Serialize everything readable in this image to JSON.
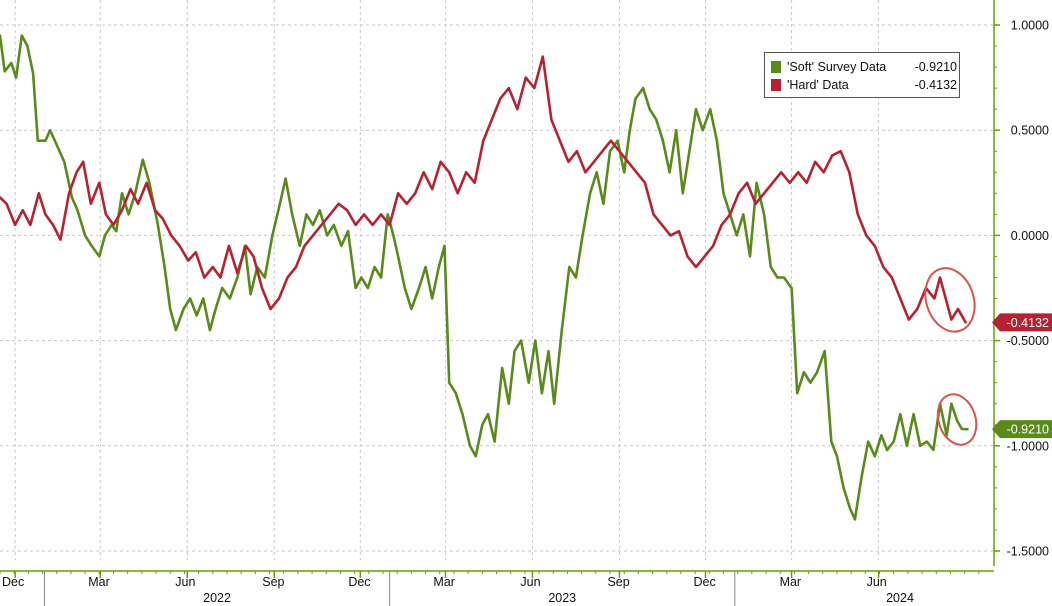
{
  "chart_data": {
    "type": "line",
    "title": "",
    "x_axis": {
      "months": [
        "Dec",
        "Mar",
        "Jun",
        "Sep",
        "Dec",
        "Mar",
        "Jun",
        "Sep",
        "Dec",
        "Mar",
        "Jun"
      ],
      "years": [
        "2022",
        "2023",
        "2024"
      ],
      "range": [
        "2021-11-15",
        "2024-09-30"
      ]
    },
    "y_axis": {
      "position": "right",
      "ylim": [
        -1.5,
        1.0
      ],
      "ticks": [
        1.0,
        0.5,
        0.0,
        -0.5,
        -1.0,
        -1.5
      ],
      "tick_labels": [
        "1.0000",
        "0.5000",
        "0.0000",
        "-0.5000",
        "-1.0000",
        "-1.5000"
      ]
    },
    "grid": "dashed",
    "legend_position": "top-right",
    "series": [
      {
        "name": "'Soft' Survey Data",
        "color": "#5a8a1c",
        "last_value": -0.921,
        "last_label": "-0.9210",
        "values": [
          [
            "2021-11-15",
            0.95
          ],
          [
            "2021-11-20",
            0.78
          ],
          [
            "2021-11-27",
            0.82
          ],
          [
            "2021-12-02",
            0.75
          ],
          [
            "2021-12-08",
            0.95
          ],
          [
            "2021-12-14",
            0.9
          ],
          [
            "2021-12-20",
            0.77
          ],
          [
            "2021-12-25",
            0.45
          ],
          [
            "2022-01-02",
            0.45
          ],
          [
            "2022-01-07",
            0.5
          ],
          [
            "2022-01-14",
            0.43
          ],
          [
            "2022-01-22",
            0.35
          ],
          [
            "2022-01-30",
            0.18
          ],
          [
            "2022-02-05",
            0.12
          ],
          [
            "2022-02-13",
            0.0
          ],
          [
            "2022-02-20",
            -0.05
          ],
          [
            "2022-02-28",
            -0.1
          ],
          [
            "2022-03-06",
            0.0
          ],
          [
            "2022-03-13",
            0.05
          ],
          [
            "2022-03-18",
            0.02
          ],
          [
            "2022-03-24",
            0.2
          ],
          [
            "2022-03-31",
            0.1
          ],
          [
            "2022-04-07",
            0.2
          ],
          [
            "2022-04-15",
            0.36
          ],
          [
            "2022-04-22",
            0.25
          ],
          [
            "2022-05-01",
            0.05
          ],
          [
            "2022-05-08",
            -0.15
          ],
          [
            "2022-05-14",
            -0.35
          ],
          [
            "2022-05-20",
            -0.45
          ],
          [
            "2022-05-28",
            -0.35
          ],
          [
            "2022-06-04",
            -0.3
          ],
          [
            "2022-06-11",
            -0.38
          ],
          [
            "2022-06-18",
            -0.3
          ],
          [
            "2022-06-25",
            -0.45
          ],
          [
            "2022-07-01",
            -0.35
          ],
          [
            "2022-07-08",
            -0.25
          ],
          [
            "2022-07-16",
            -0.3
          ],
          [
            "2022-07-24",
            -0.2
          ],
          [
            "2022-08-01",
            -0.05
          ],
          [
            "2022-08-07",
            -0.28
          ],
          [
            "2022-08-14",
            -0.15
          ],
          [
            "2022-08-22",
            -0.2
          ],
          [
            "2022-08-30",
            0.0
          ],
          [
            "2022-09-07",
            0.15
          ],
          [
            "2022-09-13",
            0.27
          ],
          [
            "2022-09-20",
            0.1
          ],
          [
            "2022-09-28",
            -0.05
          ],
          [
            "2022-10-05",
            0.1
          ],
          [
            "2022-10-12",
            0.05
          ],
          [
            "2022-10-19",
            0.12
          ],
          [
            "2022-10-27",
            0.0
          ],
          [
            "2022-11-03",
            0.05
          ],
          [
            "2022-11-11",
            -0.05
          ],
          [
            "2022-11-18",
            0.02
          ],
          [
            "2022-11-26",
            -0.25
          ],
          [
            "2022-12-02",
            -0.2
          ],
          [
            "2022-12-09",
            -0.25
          ],
          [
            "2022-12-16",
            -0.15
          ],
          [
            "2022-12-23",
            -0.2
          ],
          [
            "2022-12-30",
            0.1
          ],
          [
            "2023-01-05",
            0.0
          ],
          [
            "2023-01-10",
            -0.1
          ],
          [
            "2023-01-17",
            -0.25
          ],
          [
            "2023-01-24",
            -0.35
          ],
          [
            "2023-02-01",
            -0.25
          ],
          [
            "2023-02-08",
            -0.15
          ],
          [
            "2023-02-15",
            -0.3
          ],
          [
            "2023-02-22",
            -0.15
          ],
          [
            "2023-02-28",
            -0.05
          ],
          [
            "2023-03-05",
            -0.7
          ],
          [
            "2023-03-12",
            -0.75
          ],
          [
            "2023-03-19",
            -0.85
          ],
          [
            "2023-03-27",
            -1.0
          ],
          [
            "2023-04-02",
            -1.05
          ],
          [
            "2023-04-09",
            -0.9
          ],
          [
            "2023-04-15",
            -0.85
          ],
          [
            "2023-04-22",
            -0.98
          ],
          [
            "2023-04-30",
            -0.63
          ],
          [
            "2023-05-07",
            -0.8
          ],
          [
            "2023-05-13",
            -0.55
          ],
          [
            "2023-05-20",
            -0.5
          ],
          [
            "2023-05-28",
            -0.7
          ],
          [
            "2023-06-04",
            -0.5
          ],
          [
            "2023-06-11",
            -0.75
          ],
          [
            "2023-06-18",
            -0.55
          ],
          [
            "2023-06-24",
            -0.8
          ],
          [
            "2023-07-02",
            -0.45
          ],
          [
            "2023-07-10",
            -0.15
          ],
          [
            "2023-07-17",
            -0.2
          ],
          [
            "2023-07-24",
            0.0
          ],
          [
            "2023-08-01",
            0.2
          ],
          [
            "2023-08-08",
            0.3
          ],
          [
            "2023-08-15",
            0.15
          ],
          [
            "2023-08-22",
            0.4
          ],
          [
            "2023-08-30",
            0.45
          ],
          [
            "2023-09-06",
            0.3
          ],
          [
            "2023-09-12",
            0.5
          ],
          [
            "2023-09-18",
            0.65
          ],
          [
            "2023-09-26",
            0.7
          ],
          [
            "2023-10-03",
            0.6
          ],
          [
            "2023-10-10",
            0.55
          ],
          [
            "2023-10-17",
            0.45
          ],
          [
            "2023-10-24",
            0.3
          ],
          [
            "2023-10-31",
            0.5
          ],
          [
            "2023-11-07",
            0.2
          ],
          [
            "2023-11-14",
            0.4
          ],
          [
            "2023-11-21",
            0.6
          ],
          [
            "2023-11-28",
            0.5
          ],
          [
            "2023-12-06",
            0.6
          ],
          [
            "2023-12-13",
            0.45
          ],
          [
            "2023-12-20",
            0.2
          ],
          [
            "2023-12-27",
            0.1
          ],
          [
            "2024-01-03",
            0.0
          ],
          [
            "2024-01-10",
            0.1
          ],
          [
            "2024-01-17",
            -0.1
          ],
          [
            "2024-01-24",
            0.25
          ],
          [
            "2024-02-01",
            0.1
          ],
          [
            "2024-02-08",
            -0.15
          ],
          [
            "2024-02-15",
            -0.2
          ],
          [
            "2024-02-22",
            -0.2
          ],
          [
            "2024-03-01",
            -0.25
          ],
          [
            "2024-03-07",
            -0.75
          ],
          [
            "2024-03-14",
            -0.65
          ],
          [
            "2024-03-21",
            -0.7
          ],
          [
            "2024-03-28",
            -0.65
          ],
          [
            "2024-04-05",
            -0.55
          ],
          [
            "2024-04-12",
            -0.98
          ],
          [
            "2024-04-18",
            -1.05
          ],
          [
            "2024-04-25",
            -1.2
          ],
          [
            "2024-05-02",
            -1.3
          ],
          [
            "2024-05-07",
            -1.35
          ],
          [
            "2024-05-14",
            -1.15
          ],
          [
            "2024-05-21",
            -0.98
          ],
          [
            "2024-05-28",
            -1.05
          ],
          [
            "2024-06-04",
            -0.95
          ],
          [
            "2024-06-10",
            -1.02
          ],
          [
            "2024-06-17",
            -0.98
          ],
          [
            "2024-06-24",
            -0.85
          ],
          [
            "2024-07-01",
            -1.0
          ],
          [
            "2024-07-08",
            -0.85
          ],
          [
            "2024-07-15",
            -1.0
          ],
          [
            "2024-07-22",
            -0.98
          ],
          [
            "2024-07-29",
            -1.02
          ],
          [
            "2024-08-05",
            -0.8
          ],
          [
            "2024-08-12",
            -0.95
          ],
          [
            "2024-08-17",
            -0.8
          ],
          [
            "2024-08-23",
            -0.88
          ],
          [
            "2024-08-28",
            -0.92
          ],
          [
            "2024-09-03",
            -0.921
          ]
        ]
      },
      {
        "name": "'Hard' Data",
        "color": "#b52332",
        "last_value": -0.4132,
        "last_label": "-0.4132",
        "values": [
          [
            "2021-11-15",
            0.18
          ],
          [
            "2021-11-22",
            0.15
          ],
          [
            "2021-12-01",
            0.05
          ],
          [
            "2021-12-09",
            0.12
          ],
          [
            "2021-12-17",
            0.05
          ],
          [
            "2021-12-26",
            0.2
          ],
          [
            "2022-01-02",
            0.1
          ],
          [
            "2022-01-10",
            0.05
          ],
          [
            "2022-01-18",
            -0.02
          ],
          [
            "2022-01-27",
            0.2
          ],
          [
            "2022-02-04",
            0.3
          ],
          [
            "2022-02-11",
            0.35
          ],
          [
            "2022-02-19",
            0.15
          ],
          [
            "2022-02-28",
            0.25
          ],
          [
            "2022-03-07",
            0.1
          ],
          [
            "2022-03-15",
            0.05
          ],
          [
            "2022-03-24",
            0.12
          ],
          [
            "2022-04-02",
            0.22
          ],
          [
            "2022-04-10",
            0.15
          ],
          [
            "2022-04-19",
            0.25
          ],
          [
            "2022-04-28",
            0.12
          ],
          [
            "2022-05-06",
            0.08
          ],
          [
            "2022-05-15",
            0.0
          ],
          [
            "2022-05-24",
            -0.05
          ],
          [
            "2022-06-02",
            -0.12
          ],
          [
            "2022-06-10",
            -0.08
          ],
          [
            "2022-06-19",
            -0.2
          ],
          [
            "2022-06-28",
            -0.15
          ],
          [
            "2022-07-06",
            -0.2
          ],
          [
            "2022-07-15",
            -0.05
          ],
          [
            "2022-07-24",
            -0.18
          ],
          [
            "2022-08-02",
            -0.05
          ],
          [
            "2022-08-10",
            -0.1
          ],
          [
            "2022-08-19",
            -0.25
          ],
          [
            "2022-08-28",
            -0.35
          ],
          [
            "2022-09-06",
            -0.3
          ],
          [
            "2022-09-15",
            -0.2
          ],
          [
            "2022-09-24",
            -0.15
          ],
          [
            "2022-10-03",
            -0.05
          ],
          [
            "2022-10-12",
            0.0
          ],
          [
            "2022-10-21",
            0.05
          ],
          [
            "2022-10-30",
            0.1
          ],
          [
            "2022-11-08",
            0.15
          ],
          [
            "2022-11-17",
            0.12
          ],
          [
            "2022-11-26",
            0.05
          ],
          [
            "2022-12-05",
            0.1
          ],
          [
            "2022-12-14",
            0.05
          ],
          [
            "2022-12-23",
            0.1
          ],
          [
            "2023-01-01",
            0.05
          ],
          [
            "2023-01-10",
            0.2
          ],
          [
            "2023-01-19",
            0.15
          ],
          [
            "2023-01-28",
            0.2
          ],
          [
            "2023-02-06",
            0.3
          ],
          [
            "2023-02-15",
            0.22
          ],
          [
            "2023-02-24",
            0.35
          ],
          [
            "2023-03-05",
            0.3
          ],
          [
            "2023-03-14",
            0.2
          ],
          [
            "2023-03-23",
            0.3
          ],
          [
            "2023-04-01",
            0.25
          ],
          [
            "2023-04-10",
            0.45
          ],
          [
            "2023-04-19",
            0.55
          ],
          [
            "2023-04-28",
            0.65
          ],
          [
            "2023-05-07",
            0.7
          ],
          [
            "2023-05-16",
            0.6
          ],
          [
            "2023-05-25",
            0.75
          ],
          [
            "2023-06-03",
            0.7
          ],
          [
            "2023-06-12",
            0.85
          ],
          [
            "2023-06-21",
            0.55
          ],
          [
            "2023-06-30",
            0.45
          ],
          [
            "2023-07-09",
            0.35
          ],
          [
            "2023-07-18",
            0.4
          ],
          [
            "2023-07-27",
            0.3
          ],
          [
            "2023-08-05",
            0.35
          ],
          [
            "2023-08-14",
            0.4
          ],
          [
            "2023-08-23",
            0.45
          ],
          [
            "2023-09-01",
            0.4
          ],
          [
            "2023-09-10",
            0.35
          ],
          [
            "2023-09-19",
            0.3
          ],
          [
            "2023-09-28",
            0.25
          ],
          [
            "2023-10-07",
            0.1
          ],
          [
            "2023-10-16",
            0.05
          ],
          [
            "2023-10-25",
            0.0
          ],
          [
            "2023-11-03",
            0.02
          ],
          [
            "2023-11-12",
            -0.1
          ],
          [
            "2023-11-21",
            -0.15
          ],
          [
            "2023-11-30",
            -0.1
          ],
          [
            "2023-12-09",
            -0.05
          ],
          [
            "2023-12-18",
            0.05
          ],
          [
            "2023-12-27",
            0.1
          ],
          [
            "2024-01-05",
            0.2
          ],
          [
            "2024-01-14",
            0.25
          ],
          [
            "2024-01-23",
            0.15
          ],
          [
            "2024-02-01",
            0.2
          ],
          [
            "2024-02-10",
            0.25
          ],
          [
            "2024-02-19",
            0.3
          ],
          [
            "2024-02-28",
            0.25
          ],
          [
            "2024-03-08",
            0.3
          ],
          [
            "2024-03-17",
            0.25
          ],
          [
            "2024-03-26",
            0.35
          ],
          [
            "2024-04-04",
            0.3
          ],
          [
            "2024-04-13",
            0.38
          ],
          [
            "2024-04-22",
            0.4
          ],
          [
            "2024-05-01",
            0.3
          ],
          [
            "2024-05-10",
            0.1
          ],
          [
            "2024-05-19",
            0.0
          ],
          [
            "2024-05-28",
            -0.05
          ],
          [
            "2024-06-06",
            -0.15
          ],
          [
            "2024-06-15",
            -0.2
          ],
          [
            "2024-06-24",
            -0.3
          ],
          [
            "2024-07-03",
            -0.4
          ],
          [
            "2024-07-12",
            -0.35
          ],
          [
            "2024-07-21",
            -0.25
          ],
          [
            "2024-07-30",
            -0.3
          ],
          [
            "2024-08-05",
            -0.2
          ],
          [
            "2024-08-11",
            -0.3
          ],
          [
            "2024-08-17",
            -0.4
          ],
          [
            "2024-08-24",
            -0.35
          ],
          [
            "2024-09-01",
            -0.4132
          ]
        ]
      }
    ]
  },
  "colors": {
    "soft": "#5a8a1c",
    "hard": "#b52332",
    "axis": "#66a000",
    "highlight": "#d9534f"
  }
}
